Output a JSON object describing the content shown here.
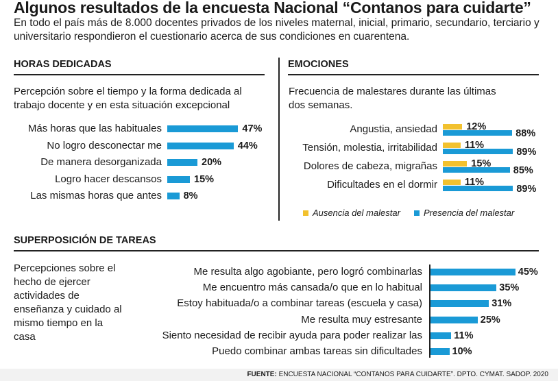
{
  "title": "Algunos resultados de la encuesta Nacional “Contanos para cuidarte”",
  "subtitle": "En todo el país más de 8.000 docentes privados de los niveles maternal, inicial, primario, secundario, terciario y universitario respondieron el cuestionario acerca de sus condiciones en cuarentena.",
  "colors": {
    "blue": "#1a9ad6",
    "yellow": "#f2c12e"
  },
  "chart_data": [
    {
      "type": "bar",
      "section_title": "HORAS DEDICADAS",
      "description": "Percepción sobre el tiempo y la forma dedicada al trabajo docente y en esta situación excepcional",
      "categories": [
        "Más horas que las habituales",
        "No logro desconectar me",
        "De manera desorganizada",
        "Logro hacer descansos",
        "Las mismas horas que antes"
      ],
      "values": [
        47,
        44,
        20,
        15,
        8
      ],
      "labels": [
        "47%",
        "44%",
        "20%",
        "15%",
        "8%"
      ],
      "unit": "%"
    },
    {
      "type": "bar",
      "section_title": "EMOCIONES",
      "description": "Frecuencia de malestares durante las últimas dos semanas.",
      "categories": [
        "Angustia, ansiedad",
        "Tensión, molestia, irritabilidad",
        "Dolores de cabeza, migrañas",
        "Dificultades en el dormir"
      ],
      "series": [
        {
          "name": "Ausencia del malestar",
          "values": [
            12,
            11,
            15,
            11
          ],
          "labels": [
            "12%",
            "11%",
            "15%",
            "11%"
          ]
        },
        {
          "name": "Presencia del malestar",
          "values": [
            88,
            89,
            85,
            89
          ],
          "labels": [
            "88%",
            "89%",
            "85%",
            "89%"
          ]
        }
      ],
      "legend": [
        "Ausencia del malestar",
        "Presencia del malestar"
      ],
      "unit": "%"
    },
    {
      "type": "bar",
      "section_title": "SUPERPOSICIÓN DE TAREAS",
      "description": "Percepciones sobre el hecho de ejercer actividades de enseñanza y cuidado al mismo tiempo en la casa",
      "categories": [
        "Me resulta algo agobiante, pero logró combinarlas",
        "Me encuentro más cansada/o que en lo habitual",
        "Estoy habituada/o a combinar tareas (escuela y casa)",
        "Me resulta muy estresante",
        "Siento necesidad de recibir ayuda para poder realizar las",
        "Puedo combinar ambas tareas sin dificultades"
      ],
      "values": [
        45,
        35,
        31,
        25,
        11,
        10
      ],
      "labels": [
        "45%",
        "35%",
        "31%",
        "25%",
        "11%",
        "10%"
      ],
      "unit": "%"
    }
  ],
  "source": {
    "label": "FUENTE:",
    "text": "ENCUESTA NACIONAL “CONTANOS PARA CUIDARTE”. DPTO. CYMAT. SADOP. 2020"
  }
}
